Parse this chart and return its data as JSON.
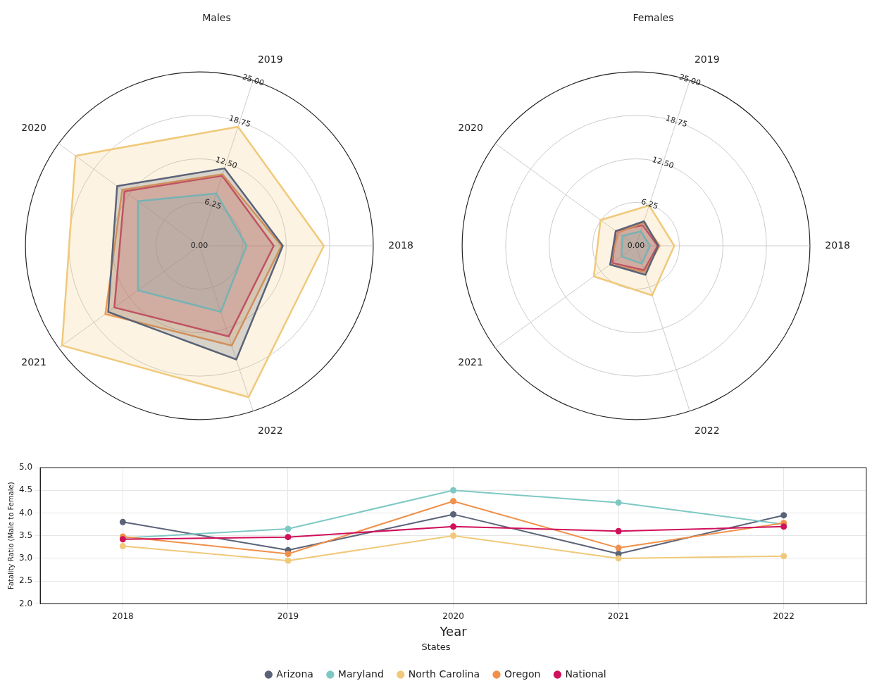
{
  "chart_data": [
    {
      "type": "radar",
      "title": "Males",
      "categories": [
        "2019",
        "2018",
        "2022",
        "2021",
        "2020"
      ],
      "ylim": [
        0,
        25
      ],
      "yticks": [
        {
          "value": 0,
          "label": "0.00"
        },
        {
          "value": 6.25,
          "label": "6.25"
        },
        {
          "value": 12.5,
          "label": "12.50"
        },
        {
          "value": 18.75,
          "label": "18.75"
        },
        {
          "value": 25,
          "label": "25.00"
        }
      ],
      "grid": true,
      "marker": "none",
      "series": [
        {
          "color": "#5a6378",
          "values": [
            11.7,
            12.0,
            17.2,
            16.2,
            14.6
          ]
        },
        {
          "color": "#7ec8c4",
          "values": [
            7.9,
            6.8,
            10.0,
            10.9,
            10.9
          ]
        },
        {
          "color": "#f0c97a",
          "values": [
            18.0,
            17.9,
            22.9,
            24.4,
            22.0
          ]
        },
        {
          "color": "#f0904a",
          "values": [
            10.8,
            11.8,
            15.1,
            16.7,
            13.7
          ]
        },
        {
          "color": "#d0105a",
          "values": [
            10.6,
            10.7,
            13.7,
            15.1,
            13.3
          ]
        }
      ]
    },
    {
      "type": "radar",
      "title": "Females",
      "categories": [
        "2019",
        "2018",
        "2022",
        "2021",
        "2020"
      ],
      "ylim": [
        0,
        25
      ],
      "yticks": [
        {
          "value": 0,
          "label": "0.00"
        },
        {
          "value": 6.25,
          "label": "6.25"
        },
        {
          "value": 12.5,
          "label": "12.50"
        },
        {
          "value": 18.75,
          "label": "18.75"
        },
        {
          "value": 25,
          "label": "25.00"
        }
      ],
      "grid": true,
      "marker": "none",
      "series": [
        {
          "color": "#5a6378",
          "values": [
            3.7,
            3.2,
            4.4,
            4.6,
            3.6
          ]
        },
        {
          "color": "#7ec8c4",
          "values": [
            2.2,
            2.0,
            2.7,
            2.6,
            2.4
          ]
        },
        {
          "color": "#f0c97a",
          "values": [
            6.1,
            5.5,
            7.5,
            7.5,
            6.3
          ]
        },
        {
          "color": "#f0904a",
          "values": [
            3.5,
            3.4,
            4.0,
            4.6,
            3.2
          ]
        },
        {
          "color": "#d0105a",
          "values": [
            3.1,
            3.1,
            3.7,
            4.2,
            3.6
          ]
        }
      ]
    },
    {
      "type": "line",
      "categories": [
        "2018",
        "2019",
        "2020",
        "2021",
        "2022"
      ],
      "xlabel": "Year",
      "ylabel": "Fatality Ratio (Male to Female)",
      "ylim": [
        2,
        5
      ],
      "yticks": [
        {
          "value": 2,
          "label": "2.0"
        },
        {
          "value": 2.5,
          "label": "2.5"
        },
        {
          "value": 3,
          "label": "3.0"
        },
        {
          "value": 3.5,
          "label": "3.5"
        },
        {
          "value": 4,
          "label": "4.0"
        },
        {
          "value": 4.5,
          "label": "4.5"
        },
        {
          "value": 5,
          "label": "5.0"
        }
      ],
      "grid": true,
      "marker": "circle",
      "legend": "bottom",
      "legend_title": "States",
      "series": [
        {
          "name": "Arizona",
          "color": "#5a6378",
          "values": [
            3.8,
            3.18,
            3.97,
            3.1,
            3.95
          ]
        },
        {
          "name": "Maryland",
          "color": "#7ec8c4",
          "values": [
            3.45,
            3.65,
            4.5,
            4.23,
            3.75
          ]
        },
        {
          "name": "North Carolina",
          "color": "#f0c97a",
          "values": [
            3.27,
            2.95,
            3.5,
            3.0,
            3.05
          ]
        },
        {
          "name": "Oregon",
          "color": "#f0904a",
          "values": [
            3.48,
            3.1,
            4.26,
            3.23,
            3.78
          ]
        },
        {
          "name": "National",
          "color": "#d0105a",
          "values": [
            3.42,
            3.47,
            3.7,
            3.6,
            3.7
          ]
        }
      ]
    }
  ]
}
